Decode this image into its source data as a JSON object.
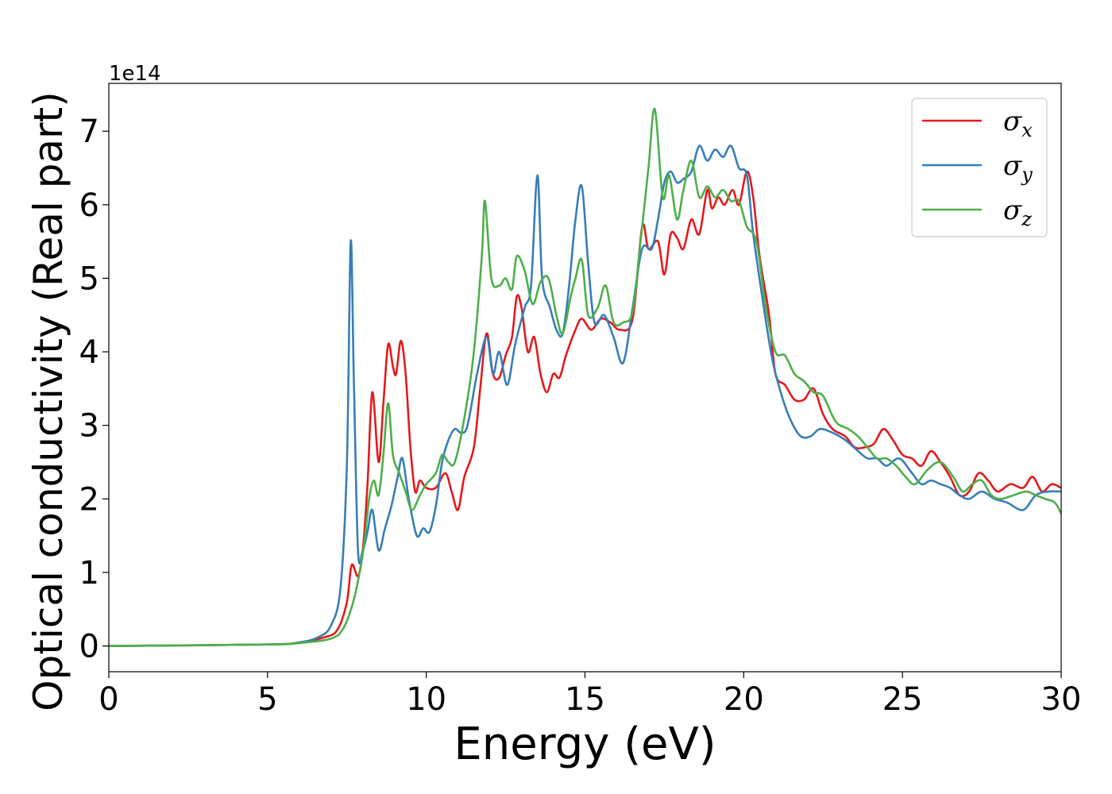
{
  "chart_data": {
    "type": "line",
    "xlabel": "Energy (eV)",
    "ylabel": "Optical conductivity (Real part)",
    "y_offset_label": "1e14",
    "y_scale": 100000000000000.0,
    "xlim": [
      0,
      30
    ],
    "ylim": [
      -0.35,
      7.65
    ],
    "x_ticks": [
      0,
      5,
      10,
      15,
      20,
      25,
      30
    ],
    "x_tick_labels": [
      "0",
      "5",
      "10",
      "15",
      "20",
      "25",
      "30"
    ],
    "y_ticks": [
      0,
      1,
      2,
      3,
      4,
      5,
      6,
      7
    ],
    "y_tick_labels": [
      "0",
      "1",
      "2",
      "3",
      "4",
      "5",
      "6",
      "7"
    ],
    "grid": false,
    "legend_position": "top-right",
    "series": [
      {
        "name": "σx",
        "symbol": "σ",
        "subscript": "x",
        "color": "#e41a1c",
        "points": [
          [
            0,
            0
          ],
          [
            5,
            0.02
          ],
          [
            6,
            0.05
          ],
          [
            6.8,
            0.12
          ],
          [
            7.2,
            0.22
          ],
          [
            7.5,
            0.6
          ],
          [
            7.65,
            1.1
          ],
          [
            7.85,
            0.95
          ],
          [
            8.0,
            1.3
          ],
          [
            8.15,
            2.2
          ],
          [
            8.3,
            3.45
          ],
          [
            8.5,
            2.5
          ],
          [
            8.65,
            3.3
          ],
          [
            8.8,
            4.1
          ],
          [
            8.95,
            3.8
          ],
          [
            9.05,
            3.7
          ],
          [
            9.2,
            4.15
          ],
          [
            9.35,
            3.7
          ],
          [
            9.5,
            2.7
          ],
          [
            9.65,
            2.1
          ],
          [
            9.8,
            2.25
          ],
          [
            10.0,
            2.15
          ],
          [
            10.3,
            2.15
          ],
          [
            10.6,
            2.35
          ],
          [
            10.8,
            2.1
          ],
          [
            11.0,
            1.85
          ],
          [
            11.2,
            2.3
          ],
          [
            11.5,
            2.7
          ],
          [
            11.7,
            3.5
          ],
          [
            11.9,
            4.25
          ],
          [
            12.1,
            3.7
          ],
          [
            12.3,
            3.65
          ],
          [
            12.5,
            3.95
          ],
          [
            12.7,
            4.2
          ],
          [
            12.85,
            4.75
          ],
          [
            13.0,
            4.6
          ],
          [
            13.2,
            4.0
          ],
          [
            13.4,
            4.2
          ],
          [
            13.6,
            3.7
          ],
          [
            13.8,
            3.45
          ],
          [
            14.0,
            3.7
          ],
          [
            14.2,
            3.65
          ],
          [
            14.4,
            3.95
          ],
          [
            14.7,
            4.3
          ],
          [
            14.9,
            4.45
          ],
          [
            15.2,
            4.3
          ],
          [
            15.5,
            4.45
          ],
          [
            15.8,
            4.4
          ],
          [
            16.1,
            4.3
          ],
          [
            16.5,
            4.45
          ],
          [
            16.8,
            5.7
          ],
          [
            17.0,
            5.4
          ],
          [
            17.3,
            5.5
          ],
          [
            17.5,
            5.05
          ],
          [
            17.7,
            5.6
          ],
          [
            17.9,
            5.55
          ],
          [
            18.1,
            5.4
          ],
          [
            18.35,
            5.8
          ],
          [
            18.6,
            5.6
          ],
          [
            18.85,
            6.2
          ],
          [
            19.0,
            5.95
          ],
          [
            19.2,
            6.1
          ],
          [
            19.4,
            6.0
          ],
          [
            19.65,
            6.2
          ],
          [
            19.85,
            6.0
          ],
          [
            20.1,
            6.45
          ],
          [
            20.3,
            6.1
          ],
          [
            20.5,
            5.3
          ],
          [
            20.8,
            4.5
          ],
          [
            21.0,
            3.7
          ],
          [
            21.3,
            3.55
          ],
          [
            21.6,
            3.35
          ],
          [
            21.9,
            3.35
          ],
          [
            22.2,
            3.5
          ],
          [
            22.5,
            3.15
          ],
          [
            22.8,
            2.95
          ],
          [
            23.2,
            2.85
          ],
          [
            23.5,
            2.7
          ],
          [
            23.8,
            2.7
          ],
          [
            24.1,
            2.75
          ],
          [
            24.4,
            2.95
          ],
          [
            24.7,
            2.8
          ],
          [
            25.0,
            2.6
          ],
          [
            25.3,
            2.55
          ],
          [
            25.6,
            2.45
          ],
          [
            25.9,
            2.65
          ],
          [
            26.2,
            2.5
          ],
          [
            26.5,
            2.3
          ],
          [
            26.8,
            2.05
          ],
          [
            27.1,
            2.1
          ],
          [
            27.4,
            2.35
          ],
          [
            27.7,
            2.25
          ],
          [
            28.0,
            2.1
          ],
          [
            28.4,
            2.2
          ],
          [
            28.8,
            2.15
          ],
          [
            29.1,
            2.3
          ],
          [
            29.4,
            2.1
          ],
          [
            29.7,
            2.2
          ],
          [
            30.0,
            2.15
          ]
        ]
      },
      {
        "name": "σy",
        "symbol": "σ",
        "subscript": "y",
        "color": "#377eb8",
        "points": [
          [
            0,
            0
          ],
          [
            5,
            0.02
          ],
          [
            6,
            0.05
          ],
          [
            6.6,
            0.12
          ],
          [
            7.0,
            0.28
          ],
          [
            7.3,
            0.8
          ],
          [
            7.5,
            2.5
          ],
          [
            7.62,
            5.5
          ],
          [
            7.72,
            3.6
          ],
          [
            7.85,
            1.3
          ],
          [
            8.0,
            1.3
          ],
          [
            8.15,
            1.55
          ],
          [
            8.3,
            1.85
          ],
          [
            8.5,
            1.3
          ],
          [
            8.7,
            1.6
          ],
          [
            8.9,
            1.9
          ],
          [
            9.1,
            2.3
          ],
          [
            9.25,
            2.55
          ],
          [
            9.45,
            2.0
          ],
          [
            9.7,
            1.5
          ],
          [
            9.9,
            1.6
          ],
          [
            10.1,
            1.55
          ],
          [
            10.3,
            1.9
          ],
          [
            10.5,
            2.5
          ],
          [
            10.7,
            2.8
          ],
          [
            10.9,
            2.95
          ],
          [
            11.1,
            2.9
          ],
          [
            11.3,
            3.0
          ],
          [
            11.6,
            3.7
          ],
          [
            11.9,
            4.2
          ],
          [
            12.1,
            3.7
          ],
          [
            12.3,
            4.0
          ],
          [
            12.55,
            3.55
          ],
          [
            12.8,
            4.1
          ],
          [
            13.1,
            4.6
          ],
          [
            13.3,
            4.9
          ],
          [
            13.5,
            6.4
          ],
          [
            13.65,
            5.0
          ],
          [
            13.9,
            4.6
          ],
          [
            14.1,
            4.3
          ],
          [
            14.3,
            4.25
          ],
          [
            14.5,
            4.9
          ],
          [
            14.7,
            5.8
          ],
          [
            14.9,
            6.25
          ],
          [
            15.1,
            5.2
          ],
          [
            15.3,
            4.4
          ],
          [
            15.6,
            4.5
          ],
          [
            15.9,
            4.2
          ],
          [
            16.2,
            3.85
          ],
          [
            16.5,
            4.6
          ],
          [
            16.8,
            5.4
          ],
          [
            17.1,
            5.4
          ],
          [
            17.3,
            5.8
          ],
          [
            17.5,
            6.3
          ],
          [
            17.7,
            6.45
          ],
          [
            17.9,
            6.3
          ],
          [
            18.1,
            6.35
          ],
          [
            18.35,
            6.45
          ],
          [
            18.6,
            6.8
          ],
          [
            18.85,
            6.6
          ],
          [
            19.1,
            6.75
          ],
          [
            19.35,
            6.65
          ],
          [
            19.6,
            6.8
          ],
          [
            19.85,
            6.5
          ],
          [
            20.1,
            6.4
          ],
          [
            20.3,
            5.6
          ],
          [
            20.6,
            4.7
          ],
          [
            20.9,
            3.9
          ],
          [
            21.2,
            3.4
          ],
          [
            21.5,
            3.05
          ],
          [
            21.8,
            2.85
          ],
          [
            22.1,
            2.85
          ],
          [
            22.4,
            2.95
          ],
          [
            22.8,
            2.9
          ],
          [
            23.2,
            2.8
          ],
          [
            23.6,
            2.65
          ],
          [
            23.9,
            2.55
          ],
          [
            24.2,
            2.55
          ],
          [
            24.5,
            2.45
          ],
          [
            24.9,
            2.55
          ],
          [
            25.3,
            2.35
          ],
          [
            25.6,
            2.2
          ],
          [
            25.9,
            2.25
          ],
          [
            26.2,
            2.2
          ],
          [
            26.5,
            2.15
          ],
          [
            26.8,
            2.05
          ],
          [
            27.1,
            2.0
          ],
          [
            27.5,
            2.1
          ],
          [
            27.9,
            2.0
          ],
          [
            28.3,
            1.95
          ],
          [
            28.8,
            1.85
          ],
          [
            29.2,
            2.05
          ],
          [
            29.6,
            2.1
          ],
          [
            30.0,
            2.1
          ]
        ]
      },
      {
        "name": "σz",
        "symbol": "σ",
        "subscript": "z",
        "color": "#4daf4a",
        "points": [
          [
            0,
            0
          ],
          [
            5,
            0.02
          ],
          [
            6,
            0.04
          ],
          [
            7.0,
            0.1
          ],
          [
            7.4,
            0.25
          ],
          [
            7.7,
            0.6
          ],
          [
            7.9,
            1.0
          ],
          [
            8.05,
            1.4
          ],
          [
            8.2,
            2.0
          ],
          [
            8.35,
            2.25
          ],
          [
            8.5,
            2.05
          ],
          [
            8.65,
            2.6
          ],
          [
            8.8,
            3.3
          ],
          [
            8.95,
            2.6
          ],
          [
            9.15,
            2.35
          ],
          [
            9.35,
            2.1
          ],
          [
            9.55,
            1.85
          ],
          [
            9.8,
            2.05
          ],
          [
            10.0,
            2.2
          ],
          [
            10.3,
            2.35
          ],
          [
            10.5,
            2.6
          ],
          [
            10.7,
            2.5
          ],
          [
            10.9,
            2.5
          ],
          [
            11.2,
            3.1
          ],
          [
            11.5,
            4.0
          ],
          [
            11.75,
            5.3
          ],
          [
            11.85,
            6.05
          ],
          [
            12.05,
            5.0
          ],
          [
            12.3,
            4.9
          ],
          [
            12.5,
            5.0
          ],
          [
            12.7,
            4.85
          ],
          [
            12.85,
            5.3
          ],
          [
            13.1,
            5.1
          ],
          [
            13.35,
            4.65
          ],
          [
            13.6,
            4.95
          ],
          [
            13.85,
            5.0
          ],
          [
            14.1,
            4.5
          ],
          [
            14.3,
            4.25
          ],
          [
            14.55,
            4.75
          ],
          [
            14.7,
            5.0
          ],
          [
            14.9,
            5.25
          ],
          [
            15.1,
            4.5
          ],
          [
            15.4,
            4.6
          ],
          [
            15.65,
            4.9
          ],
          [
            15.9,
            4.4
          ],
          [
            16.2,
            4.4
          ],
          [
            16.5,
            4.55
          ],
          [
            16.75,
            5.5
          ],
          [
            17.0,
            6.5
          ],
          [
            17.2,
            7.3
          ],
          [
            17.45,
            6.1
          ],
          [
            17.65,
            6.4
          ],
          [
            17.9,
            5.8
          ],
          [
            18.1,
            6.2
          ],
          [
            18.35,
            6.6
          ],
          [
            18.6,
            6.1
          ],
          [
            18.85,
            6.25
          ],
          [
            19.1,
            6.1
          ],
          [
            19.35,
            6.2
          ],
          [
            19.6,
            6.05
          ],
          [
            19.85,
            6.05
          ],
          [
            20.1,
            5.7
          ],
          [
            20.4,
            5.5
          ],
          [
            20.7,
            4.6
          ],
          [
            21.0,
            4.0
          ],
          [
            21.3,
            3.95
          ],
          [
            21.6,
            3.7
          ],
          [
            21.9,
            3.6
          ],
          [
            22.2,
            3.45
          ],
          [
            22.5,
            3.4
          ],
          [
            22.9,
            3.05
          ],
          [
            23.3,
            2.95
          ],
          [
            23.6,
            2.85
          ],
          [
            23.9,
            2.7
          ],
          [
            24.2,
            2.55
          ],
          [
            24.5,
            2.55
          ],
          [
            24.8,
            2.45
          ],
          [
            25.1,
            2.3
          ],
          [
            25.4,
            2.2
          ],
          [
            25.8,
            2.4
          ],
          [
            26.2,
            2.5
          ],
          [
            26.6,
            2.3
          ],
          [
            26.9,
            2.1
          ],
          [
            27.2,
            2.2
          ],
          [
            27.5,
            2.25
          ],
          [
            27.8,
            2.05
          ],
          [
            28.1,
            2.0
          ],
          [
            28.5,
            2.05
          ],
          [
            28.9,
            2.1
          ],
          [
            29.2,
            2.05
          ],
          [
            29.5,
            2.0
          ],
          [
            29.8,
            1.95
          ],
          [
            30.0,
            1.8
          ]
        ]
      }
    ]
  }
}
